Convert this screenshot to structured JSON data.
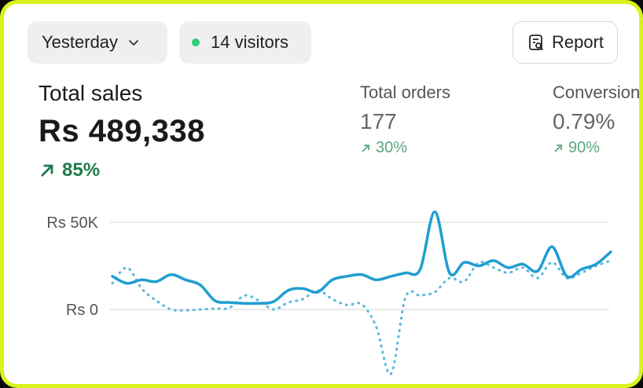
{
  "toolbar": {
    "date_label": "Yesterday",
    "visitors_label": "14 visitors",
    "report_label": "Report",
    "visitor_dot_color": "#2ecf7a"
  },
  "summary": {
    "total_sales_label": "Total sales",
    "total_sales_value": "Rs 489,338",
    "total_sales_change": "85%",
    "change_color": "#1e7a4a"
  },
  "metrics": [
    {
      "label": "Total orders",
      "value": "177",
      "change": "30%"
    },
    {
      "label": "Conversion rate",
      "value": "0.79%",
      "change": "90%"
    }
  ],
  "icons": {
    "date_dropdown": "chevron-down-icon",
    "report": "report-search-icon",
    "trend": "arrow-up-right-icon"
  },
  "chart_data": {
    "type": "line",
    "yticks": [
      "Rs 50K",
      "Rs 0"
    ],
    "ylim": [
      -35000,
      60000
    ],
    "grid": true,
    "series": [
      {
        "style": "solid",
        "color": "#1f9ed0",
        "values": [
          19000,
          15000,
          17000,
          16000,
          20000,
          17000,
          14000,
          5000,
          4000,
          3500,
          3500,
          4500,
          11000,
          12000,
          10000,
          17000,
          19000,
          20000,
          17000,
          19000,
          21000,
          23000,
          56000,
          21000,
          27000,
          25000,
          28000,
          24000,
          26000,
          22000,
          36000,
          19000,
          23000,
          26000,
          33000
        ]
      },
      {
        "style": "dotted",
        "color": "#58b7dc",
        "values": [
          15000,
          24000,
          12000,
          5000,
          0,
          -500,
          0,
          500,
          1000,
          8000,
          5000,
          0,
          4000,
          6000,
          11000,
          6000,
          2500,
          3000,
          -10000,
          -37000,
          7000,
          8000,
          10000,
          18000,
          16000,
          27000,
          24000,
          21000,
          24000,
          18000,
          27000,
          18000,
          21000,
          25000,
          28000
        ]
      }
    ]
  }
}
